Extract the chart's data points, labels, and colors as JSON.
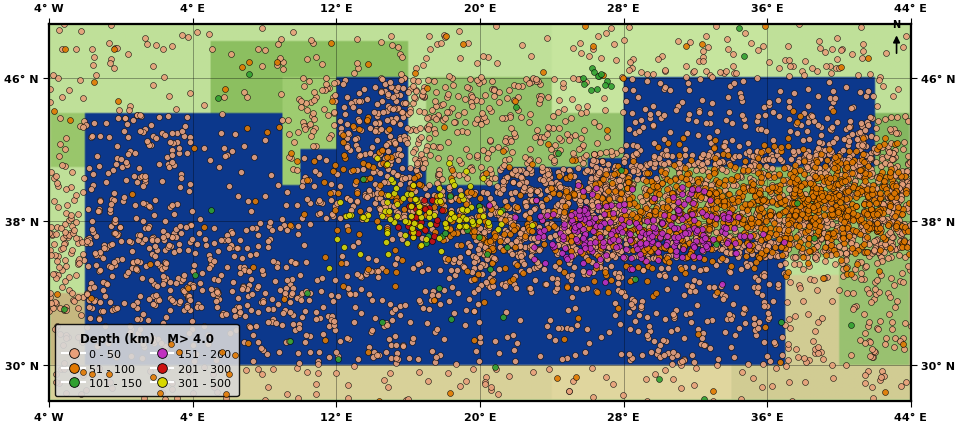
{
  "lon_min": -4,
  "lon_max": 44,
  "lat_min": 28,
  "lat_max": 49,
  "lon_ticks": [
    -4,
    4,
    12,
    20,
    28,
    36,
    44
  ],
  "lat_ticks": [
    30,
    38,
    46
  ],
  "depth_categories": [
    {
      "label": "0 - 50",
      "color": "#e8a07a",
      "edgecolor": "#000000"
    },
    {
      "label": "51 - 100",
      "color": "#e07800",
      "edgecolor": "#000000"
    },
    {
      "label": "101 - 150",
      "color": "#30a030",
      "edgecolor": "#000000"
    },
    {
      "label": "151 - 200",
      "color": "#c030c0",
      "edgecolor": "#000000"
    },
    {
      "label": "201 - 300",
      "color": "#cc1010",
      "edgecolor": "#000000"
    },
    {
      "label": "301 - 500",
      "color": "#d8d800",
      "edgecolor": "#000000"
    }
  ],
  "legend_title": "Depth (km)   M> 4.0",
  "figsize": [
    9.6,
    4.27
  ],
  "dpi": 100,
  "seed": 42,
  "marker_size": 18,
  "marker_lw": 0.4
}
